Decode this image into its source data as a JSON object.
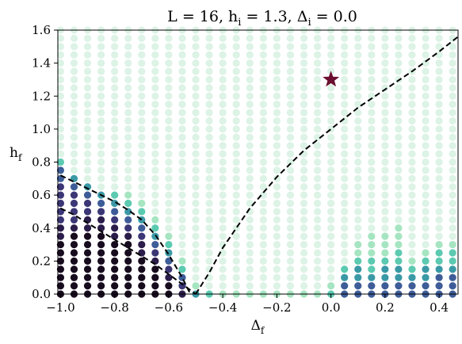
{
  "chart_data": {
    "type": "scatter",
    "title": {
      "prefix": "L = 16, h",
      "sub1": "i",
      "mid1": " = 1.3, Δ",
      "sub2": "i",
      "suffix": " = 0.0"
    },
    "xlabel": {
      "main": "Δ",
      "sub": "f"
    },
    "ylabel": {
      "main": "h",
      "sub": "f"
    },
    "xlim": [
      -1.01,
      0.47
    ],
    "ylim": [
      0.0,
      1.6
    ],
    "xticks": [
      "−1.0",
      "−0.8",
      "−0.6",
      "−0.4",
      "−0.2",
      "0.0",
      "0.2",
      "0.4"
    ],
    "xtick_values": [
      -1.0,
      -0.8,
      -0.6,
      -0.4,
      -0.2,
      0.0,
      0.2,
      0.4
    ],
    "yticks": [
      "0.0",
      "0.2",
      "0.4",
      "0.6",
      "0.8",
      "1.0",
      "1.2",
      "1.4",
      "1.6"
    ],
    "ytick_values": [
      0.0,
      0.2,
      0.4,
      0.6,
      0.8,
      1.0,
      1.2,
      1.4,
      1.6
    ],
    "grid": {
      "x_start": -1.0,
      "x_step": 0.05,
      "x_count": 30,
      "y_start": 0.0,
      "y_step": 0.05,
      "y_count": 33
    },
    "colorscale": [
      "#dcf3e6",
      "#a6e5c1",
      "#5ccab0",
      "#3b99a6",
      "#3e5d98",
      "#3b3675",
      "#2b1d4a",
      "#170b1e"
    ],
    "levels_note": "0 = lightest (background), 7 = darkest",
    "cells": [
      [
        -1.0,
        0.0,
        7
      ],
      [
        -1.0,
        0.05,
        7
      ],
      [
        -1.0,
        0.1,
        7
      ],
      [
        -1.0,
        0.15,
        7
      ],
      [
        -1.0,
        0.2,
        7
      ],
      [
        -1.0,
        0.25,
        7
      ],
      [
        -1.0,
        0.3,
        7
      ],
      [
        -1.0,
        0.35,
        6
      ],
      [
        -1.0,
        0.4,
        6
      ],
      [
        -1.0,
        0.45,
        5
      ],
      [
        -1.0,
        0.5,
        5
      ],
      [
        -1.0,
        0.55,
        5
      ],
      [
        -1.0,
        0.6,
        5
      ],
      [
        -1.0,
        0.65,
        5
      ],
      [
        -1.0,
        0.7,
        4
      ],
      [
        -1.0,
        0.75,
        4
      ],
      [
        -1.0,
        0.8,
        2
      ],
      [
        -0.95,
        0.0,
        7
      ],
      [
        -0.95,
        0.05,
        7
      ],
      [
        -0.95,
        0.1,
        7
      ],
      [
        -0.95,
        0.15,
        7
      ],
      [
        -0.95,
        0.2,
        7
      ],
      [
        -0.95,
        0.25,
        7
      ],
      [
        -0.95,
        0.3,
        7
      ],
      [
        -0.95,
        0.35,
        7
      ],
      [
        -0.95,
        0.4,
        6
      ],
      [
        -0.95,
        0.45,
        5
      ],
      [
        -0.95,
        0.5,
        5
      ],
      [
        -0.95,
        0.55,
        5
      ],
      [
        -0.95,
        0.6,
        5
      ],
      [
        -0.95,
        0.65,
        4
      ],
      [
        -0.95,
        0.7,
        3
      ],
      [
        -0.9,
        0.0,
        7
      ],
      [
        -0.9,
        0.05,
        7
      ],
      [
        -0.9,
        0.1,
        7
      ],
      [
        -0.9,
        0.15,
        7
      ],
      [
        -0.9,
        0.2,
        7
      ],
      [
        -0.9,
        0.25,
        7
      ],
      [
        -0.9,
        0.3,
        7
      ],
      [
        -0.9,
        0.35,
        7
      ],
      [
        -0.9,
        0.4,
        6
      ],
      [
        -0.9,
        0.45,
        6
      ],
      [
        -0.9,
        0.5,
        5
      ],
      [
        -0.9,
        0.55,
        5
      ],
      [
        -0.9,
        0.6,
        4
      ],
      [
        -0.9,
        0.65,
        3
      ],
      [
        -0.85,
        0.0,
        7
      ],
      [
        -0.85,
        0.05,
        7
      ],
      [
        -0.85,
        0.1,
        7
      ],
      [
        -0.85,
        0.15,
        7
      ],
      [
        -0.85,
        0.2,
        7
      ],
      [
        -0.85,
        0.25,
        7
      ],
      [
        -0.85,
        0.3,
        7
      ],
      [
        -0.85,
        0.35,
        7
      ],
      [
        -0.85,
        0.4,
        6
      ],
      [
        -0.85,
        0.45,
        6
      ],
      [
        -0.85,
        0.5,
        5
      ],
      [
        -0.85,
        0.55,
        4
      ],
      [
        -0.85,
        0.6,
        3
      ],
      [
        -0.8,
        0.0,
        7
      ],
      [
        -0.8,
        0.05,
        7
      ],
      [
        -0.8,
        0.1,
        7
      ],
      [
        -0.8,
        0.15,
        7
      ],
      [
        -0.8,
        0.2,
        7
      ],
      [
        -0.8,
        0.25,
        7
      ],
      [
        -0.8,
        0.3,
        7
      ],
      [
        -0.8,
        0.35,
        6
      ],
      [
        -0.8,
        0.4,
        6
      ],
      [
        -0.8,
        0.45,
        5
      ],
      [
        -0.8,
        0.5,
        4
      ],
      [
        -0.8,
        0.55,
        3
      ],
      [
        -0.8,
        0.6,
        2
      ],
      [
        -0.75,
        0.0,
        7
      ],
      [
        -0.75,
        0.05,
        7
      ],
      [
        -0.75,
        0.1,
        7
      ],
      [
        -0.75,
        0.15,
        7
      ],
      [
        -0.75,
        0.2,
        7
      ],
      [
        -0.75,
        0.25,
        7
      ],
      [
        -0.75,
        0.3,
        7
      ],
      [
        -0.75,
        0.35,
        6
      ],
      [
        -0.75,
        0.4,
        5
      ],
      [
        -0.75,
        0.45,
        4
      ],
      [
        -0.75,
        0.5,
        3
      ],
      [
        -0.75,
        0.55,
        2
      ],
      [
        -0.75,
        0.6,
        1
      ],
      [
        -0.7,
        0.0,
        7
      ],
      [
        -0.7,
        0.05,
        7
      ],
      [
        -0.7,
        0.1,
        7
      ],
      [
        -0.7,
        0.15,
        7
      ],
      [
        -0.7,
        0.2,
        7
      ],
      [
        -0.7,
        0.25,
        6
      ],
      [
        -0.7,
        0.3,
        6
      ],
      [
        -0.7,
        0.35,
        5
      ],
      [
        -0.7,
        0.4,
        4
      ],
      [
        -0.7,
        0.45,
        3
      ],
      [
        -0.7,
        0.5,
        2
      ],
      [
        -0.7,
        0.55,
        1
      ],
      [
        -0.65,
        0.0,
        7
      ],
      [
        -0.65,
        0.05,
        7
      ],
      [
        -0.65,
        0.1,
        7
      ],
      [
        -0.65,
        0.15,
        7
      ],
      [
        -0.65,
        0.2,
        6
      ],
      [
        -0.65,
        0.25,
        5
      ],
      [
        -0.65,
        0.3,
        4
      ],
      [
        -0.65,
        0.35,
        3
      ],
      [
        -0.65,
        0.4,
        2
      ],
      [
        -0.65,
        0.45,
        1
      ],
      [
        -0.6,
        0.0,
        7
      ],
      [
        -0.6,
        0.05,
        7
      ],
      [
        -0.6,
        0.1,
        6
      ],
      [
        -0.6,
        0.15,
        5
      ],
      [
        -0.6,
        0.2,
        4
      ],
      [
        -0.6,
        0.25,
        3
      ],
      [
        -0.6,
        0.3,
        2
      ],
      [
        -0.6,
        0.35,
        1
      ],
      [
        -0.55,
        0.0,
        6
      ],
      [
        -0.55,
        0.05,
        5
      ],
      [
        -0.55,
        0.1,
        4
      ],
      [
        -0.55,
        0.15,
        2
      ],
      [
        -0.55,
        0.2,
        1
      ],
      [
        -0.5,
        0.0,
        3
      ],
      [
        -0.5,
        0.05,
        1
      ],
      [
        -0.45,
        0.0,
        2
      ],
      [
        -0.4,
        0.0,
        1
      ],
      [
        -0.35,
        0.0,
        1
      ],
      [
        -0.3,
        0.0,
        1
      ],
      [
        -0.25,
        0.0,
        1
      ],
      [
        -0.2,
        0.0,
        1
      ],
      [
        -0.15,
        0.0,
        1
      ],
      [
        -0.1,
        0.0,
        1
      ],
      [
        -0.05,
        0.0,
        1
      ],
      [
        0.0,
        0.0,
        2
      ],
      [
        0.0,
        0.05,
        1
      ],
      [
        0.05,
        0.0,
        4
      ],
      [
        0.05,
        0.05,
        4
      ],
      [
        0.05,
        0.1,
        3
      ],
      [
        0.05,
        0.15,
        2
      ],
      [
        0.1,
        0.0,
        4
      ],
      [
        0.1,
        0.05,
        4
      ],
      [
        0.1,
        0.1,
        3
      ],
      [
        0.1,
        0.15,
        3
      ],
      [
        0.1,
        0.2,
        2
      ],
      [
        0.1,
        0.25,
        1
      ],
      [
        0.1,
        0.3,
        1
      ],
      [
        0.15,
        0.0,
        4
      ],
      [
        0.15,
        0.05,
        4
      ],
      [
        0.15,
        0.1,
        3
      ],
      [
        0.15,
        0.15,
        2
      ],
      [
        0.15,
        0.2,
        2
      ],
      [
        0.15,
        0.25,
        1
      ],
      [
        0.15,
        0.3,
        1
      ],
      [
        0.15,
        0.35,
        1
      ],
      [
        0.2,
        0.0,
        4
      ],
      [
        0.2,
        0.05,
        4
      ],
      [
        0.2,
        0.1,
        3
      ],
      [
        0.2,
        0.15,
        3
      ],
      [
        0.2,
        0.2,
        2
      ],
      [
        0.2,
        0.25,
        1
      ],
      [
        0.2,
        0.3,
        1
      ],
      [
        0.2,
        0.35,
        1
      ],
      [
        0.25,
        0.0,
        4
      ],
      [
        0.25,
        0.05,
        4
      ],
      [
        0.25,
        0.1,
        3
      ],
      [
        0.25,
        0.15,
        3
      ],
      [
        0.25,
        0.2,
        2
      ],
      [
        0.25,
        0.25,
        2
      ],
      [
        0.25,
        0.3,
        1
      ],
      [
        0.25,
        0.35,
        1
      ],
      [
        0.25,
        0.4,
        1
      ],
      [
        0.3,
        0.0,
        4
      ],
      [
        0.3,
        0.05,
        4
      ],
      [
        0.3,
        0.1,
        3
      ],
      [
        0.3,
        0.15,
        2
      ],
      [
        0.3,
        0.2,
        1
      ],
      [
        0.35,
        0.0,
        4
      ],
      [
        0.35,
        0.05,
        4
      ],
      [
        0.35,
        0.1,
        3
      ],
      [
        0.35,
        0.15,
        3
      ],
      [
        0.35,
        0.2,
        2
      ],
      [
        0.35,
        0.25,
        1
      ],
      [
        0.4,
        0.0,
        4
      ],
      [
        0.4,
        0.05,
        4
      ],
      [
        0.4,
        0.1,
        4
      ],
      [
        0.4,
        0.15,
        3
      ],
      [
        0.4,
        0.2,
        2
      ],
      [
        0.4,
        0.25,
        2
      ],
      [
        0.4,
        0.3,
        1
      ],
      [
        0.45,
        0.0,
        4
      ],
      [
        0.45,
        0.05,
        4
      ],
      [
        0.45,
        0.1,
        4
      ],
      [
        0.45,
        0.15,
        3
      ],
      [
        0.45,
        0.2,
        2
      ],
      [
        0.45,
        0.25,
        2
      ],
      [
        0.45,
        0.3,
        1
      ]
    ],
    "boundary_lines": [
      {
        "style": "dashed",
        "points": [
          [
            -1.0,
            0.72
          ],
          [
            -0.95,
            0.68
          ],
          [
            -0.9,
            0.64
          ],
          [
            -0.85,
            0.6
          ],
          [
            -0.8,
            0.56
          ],
          [
            -0.75,
            0.51
          ],
          [
            -0.7,
            0.45
          ],
          [
            -0.65,
            0.36
          ],
          [
            -0.6,
            0.24
          ],
          [
            -0.55,
            0.1
          ],
          [
            -0.52,
            0.0
          ]
        ]
      },
      {
        "style": "dashed",
        "points": [
          [
            -1.0,
            0.52
          ],
          [
            -0.95,
            0.48
          ],
          [
            -0.9,
            0.43
          ],
          [
            -0.85,
            0.38
          ],
          [
            -0.8,
            0.33
          ],
          [
            -0.75,
            0.28
          ],
          [
            -0.7,
            0.23
          ],
          [
            -0.65,
            0.18
          ],
          [
            -0.6,
            0.12
          ],
          [
            -0.55,
            0.06
          ],
          [
            -0.5,
            0.0
          ]
        ]
      },
      {
        "style": "dashed",
        "points": [
          [
            -0.5,
            0.0
          ],
          [
            -0.45,
            0.13
          ],
          [
            -0.4,
            0.28
          ],
          [
            -0.3,
            0.52
          ],
          [
            -0.2,
            0.71
          ],
          [
            -0.1,
            0.87
          ],
          [
            0.0,
            1.0
          ],
          [
            0.1,
            1.13
          ],
          [
            0.2,
            1.24
          ],
          [
            0.3,
            1.35
          ],
          [
            0.4,
            1.47
          ],
          [
            0.47,
            1.56
          ]
        ]
      }
    ],
    "marker": {
      "shape": "star",
      "x": 0.0,
      "y": 1.3,
      "color": "#6b0f2f"
    }
  }
}
